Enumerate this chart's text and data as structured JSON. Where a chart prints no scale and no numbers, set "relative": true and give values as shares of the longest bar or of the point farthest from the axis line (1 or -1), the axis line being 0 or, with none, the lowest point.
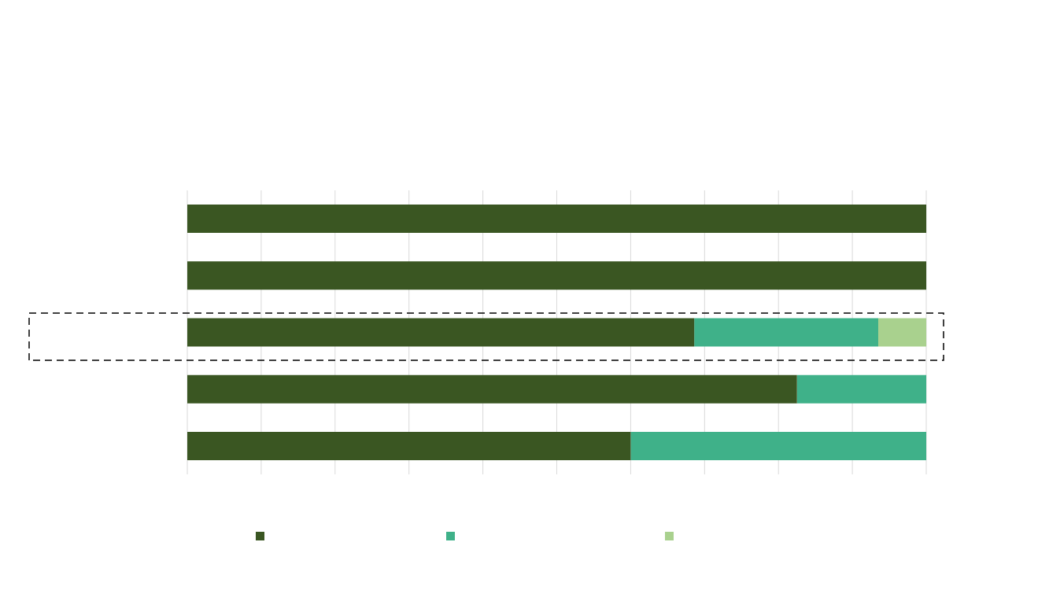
{
  "chart_data": {
    "type": "bar",
    "orientation": "horizontal",
    "stacked": true,
    "relative": true,
    "grid": "x",
    "categories": [
      null,
      null,
      null,
      null,
      null
    ],
    "series": [
      {
        "color": "#3a5622",
        "values": [
          1,
          1,
          0.686,
          0.825,
          0.6
        ]
      },
      {
        "color": "#3fb189",
        "values": [
          0,
          0,
          0.249,
          0.175,
          0.4
        ]
      },
      {
        "color": "#a9d18e",
        "values": [
          0,
          0,
          0.065,
          0,
          0
        ]
      }
    ]
  }
}
